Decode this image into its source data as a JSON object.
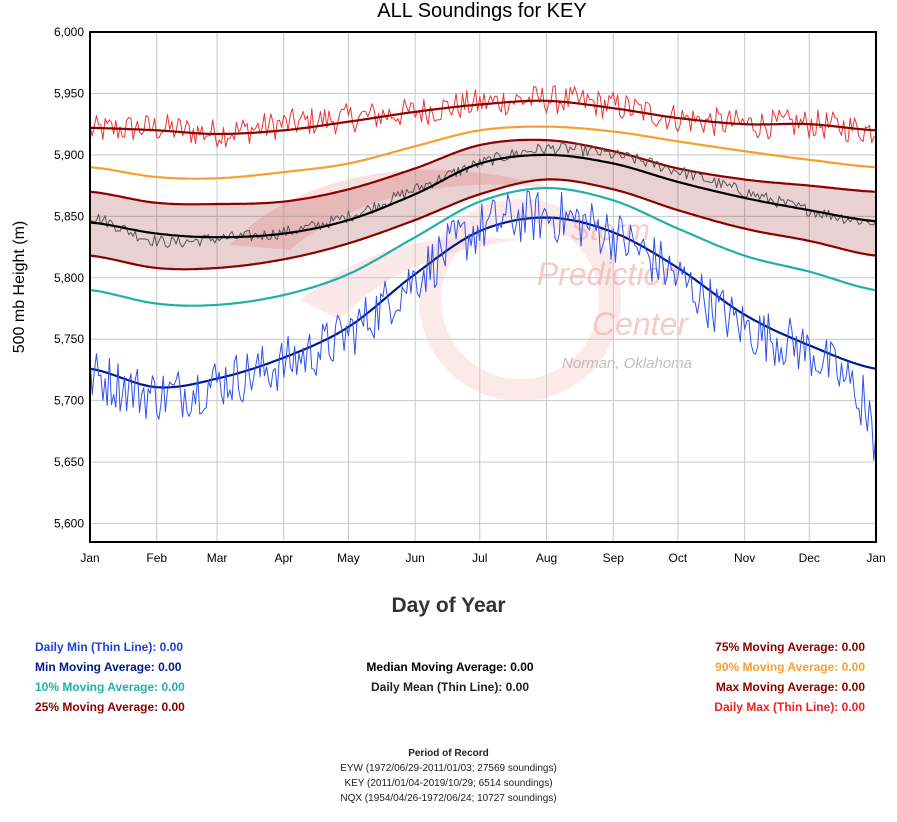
{
  "chart_data": {
    "type": "line",
    "title": "ALL Soundings for KEY",
    "xlabel": "Day of Year",
    "ylabel": "500 mb Height (m)",
    "ylim": [
      5585,
      6000
    ],
    "y_ticks": [
      "5,600",
      "5,650",
      "5,700",
      "5,750",
      "5,800",
      "5,850",
      "5,900",
      "5,950",
      "6,000"
    ],
    "x_ticks": [
      "Jan",
      "Feb",
      "Mar",
      "Apr",
      "May",
      "Jun",
      "Jul",
      "Aug",
      "Sep",
      "Oct",
      "Nov",
      "Dec",
      "Jan"
    ],
    "grid": true,
    "x": [
      1,
      32,
      60,
      91,
      121,
      152,
      182,
      213,
      244,
      274,
      305,
      335,
      366
    ],
    "series": [
      {
        "name": "Daily Max (Thin Line)",
        "color": "#ee3333",
        "values": [
          5920,
          5922,
          5918,
          5925,
          5930,
          5935,
          5942,
          5945,
          5940,
          5930,
          5925,
          5925,
          5920
        ]
      },
      {
        "name": "Max Moving Average",
        "color": "#8b0000",
        "values": [
          5922,
          5920,
          5917,
          5920,
          5927,
          5935,
          5941,
          5944,
          5938,
          5930,
          5925,
          5925,
          5920
        ]
      },
      {
        "name": "90% Moving Average",
        "color": "#f5a030",
        "values": [
          5890,
          5882,
          5881,
          5886,
          5893,
          5907,
          5920,
          5923,
          5919,
          5911,
          5903,
          5896,
          5890
        ]
      },
      {
        "name": "75% Moving Average",
        "color": "#8b0000",
        "values": [
          5870,
          5861,
          5860,
          5862,
          5872,
          5889,
          5908,
          5912,
          5903,
          5889,
          5880,
          5875,
          5870
        ]
      },
      {
        "name": "Daily Mean (Thin Line)",
        "color": "#555555",
        "values": [
          5850,
          5830,
          5832,
          5837,
          5850,
          5872,
          5893,
          5905,
          5900,
          5887,
          5870,
          5855,
          5845
        ]
      },
      {
        "name": "Median Moving Average",
        "color": "#000000",
        "values": [
          5845,
          5836,
          5833,
          5836,
          5847,
          5868,
          5893,
          5900,
          5893,
          5878,
          5865,
          5855,
          5846
        ]
      },
      {
        "name": "25% Moving Average",
        "color": "#8b0000",
        "values": [
          5818,
          5808,
          5808,
          5815,
          5828,
          5847,
          5868,
          5880,
          5872,
          5855,
          5840,
          5830,
          5818
        ]
      },
      {
        "name": "10% Moving Average",
        "color": "#20b0a8",
        "values": [
          5790,
          5779,
          5778,
          5786,
          5803,
          5833,
          5862,
          5873,
          5863,
          5840,
          5818,
          5805,
          5790
        ]
      },
      {
        "name": "Min Moving Average",
        "color": "#001a8b",
        "values": [
          5726,
          5711,
          5718,
          5735,
          5760,
          5803,
          5838,
          5849,
          5837,
          5808,
          5770,
          5745,
          5726
        ]
      },
      {
        "name": "Daily Min (Thin Line)",
        "color": "#3050ee",
        "values": [
          5720,
          5705,
          5715,
          5730,
          5755,
          5800,
          5840,
          5850,
          5835,
          5800,
          5760,
          5740,
          5700
        ]
      }
    ]
  },
  "legend": {
    "left": [
      {
        "text": "Daily Min (Thin Line): 0.00",
        "color": "#2040d8"
      },
      {
        "text": "Min Moving Average: 0.00",
        "color": "#001a8b"
      },
      {
        "text": "10% Moving Average: 0.00",
        "color": "#20b0a8"
      },
      {
        "text": "25% Moving Average: 0.00",
        "color": "#8b0000"
      }
    ],
    "middle": [
      {
        "text": "Median Moving Average: 0.00",
        "color": "#000000"
      },
      {
        "text": "Daily Mean (Thin Line): 0.00",
        "color": "#222222"
      }
    ],
    "right": [
      {
        "text": "75% Moving Average: 0.00",
        "color": "#8b0000"
      },
      {
        "text": "90% Moving Average: 0.00",
        "color": "#f5a030"
      },
      {
        "text": "Max Moving Average: 0.00",
        "color": "#8b0000"
      },
      {
        "text": "Daily Max (Thin Line): 0.00",
        "color": "#ee2222"
      }
    ]
  },
  "watermark": {
    "line1": "Storm",
    "line2": "Prediction",
    "line3": "Center",
    "line4": "Norman, Oklahoma"
  },
  "period": {
    "title": "Period of Record",
    "lines": [
      "EYW (1972/06/29-2011/01/03; 27569 soundings)",
      "KEY (2011/01/04-2019/10/29; 6514 soundings)",
      "NQX (1954/04/26-1972/06/24; 10727 soundings)"
    ]
  }
}
